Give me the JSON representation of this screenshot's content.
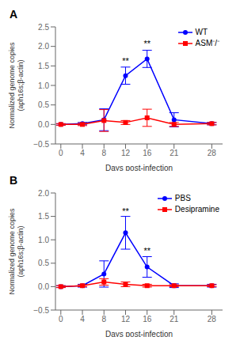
{
  "chart_data": [
    {
      "type": "line",
      "title": "A",
      "xlabel": "Days post-infection",
      "ylabel": "Normalized genome copies\n(aph16s;β-actin)",
      "x": [
        0,
        4,
        8,
        12,
        16,
        21,
        28
      ],
      "xlim": [
        -1,
        30
      ],
      "xticks": [
        0,
        4,
        8,
        12,
        16,
        21,
        28
      ],
      "ylim": [
        -0.5,
        2.5
      ],
      "yticks": [
        {
          "value": -0.5,
          "label": "−0.5"
        },
        {
          "value": 0,
          "label": "0.0"
        },
        0.5,
        {
          "value": 1,
          "label": "1.0"
        },
        1.5,
        {
          "value": 2,
          "label": "2.0"
        },
        2.5
      ],
      "legend": "upper right",
      "series": [
        {
          "name": "WT",
          "color": "#0000FF",
          "marker": "circle",
          "values": [
            0.0,
            0.02,
            0.12,
            1.25,
            1.68,
            0.12,
            0.02
          ],
          "errors": [
            0.02,
            0.03,
            0.28,
            0.22,
            0.22,
            0.18,
            0.03
          ]
        },
        {
          "name": "ASM⁻/⁻",
          "color": "#FF0000",
          "marker": "square",
          "values": [
            0.0,
            0.0,
            0.1,
            0.05,
            0.17,
            0.0,
            0.02
          ],
          "errors": [
            0.02,
            0.03,
            0.28,
            0.05,
            0.22,
            0.05,
            0.03
          ]
        }
      ],
      "annotations": [
        {
          "x": 12,
          "y": 1.53,
          "text": "**"
        },
        {
          "x": 16,
          "y": 1.97,
          "text": "**"
        }
      ]
    },
    {
      "type": "line",
      "title": "B",
      "xlabel": "Days post-infection",
      "ylabel": "Normalized genome copies\n(aph16s;β-actin)",
      "x": [
        0,
        4,
        8,
        12,
        16,
        21,
        28
      ],
      "xlim": [
        -1,
        30
      ],
      "xticks": [
        0,
        4,
        8,
        12,
        16,
        21,
        28
      ],
      "ylim": [
        -0.5,
        2.0
      ],
      "yticks": [
        {
          "value": -0.5,
          "label": "−0.5"
        },
        {
          "value": 0,
          "label": "0.0"
        },
        0.5,
        {
          "value": 1,
          "label": "1.0"
        },
        1.5,
        {
          "value": 2,
          "label": "2.0"
        }
      ],
      "legend": "upper right",
      "series": [
        {
          "name": "PBS",
          "color": "#0000FF",
          "marker": "circle",
          "values": [
            0.0,
            0.02,
            0.27,
            1.15,
            0.42,
            0.02,
            0.02
          ],
          "errors": [
            0.02,
            0.03,
            0.28,
            0.35,
            0.22,
            0.04,
            0.03
          ]
        },
        {
          "name": "Desipramine",
          "color": "#FF0000",
          "marker": "square",
          "values": [
            0.0,
            0.02,
            0.1,
            0.05,
            0.02,
            0.02,
            0.02
          ],
          "errors": [
            0.02,
            0.02,
            0.07,
            0.05,
            0.03,
            0.02,
            0.02
          ]
        }
      ],
      "annotations": [
        {
          "x": 12,
          "y": 1.52,
          "text": "**"
        },
        {
          "x": 16,
          "y": 0.68,
          "text": "**"
        }
      ]
    }
  ]
}
